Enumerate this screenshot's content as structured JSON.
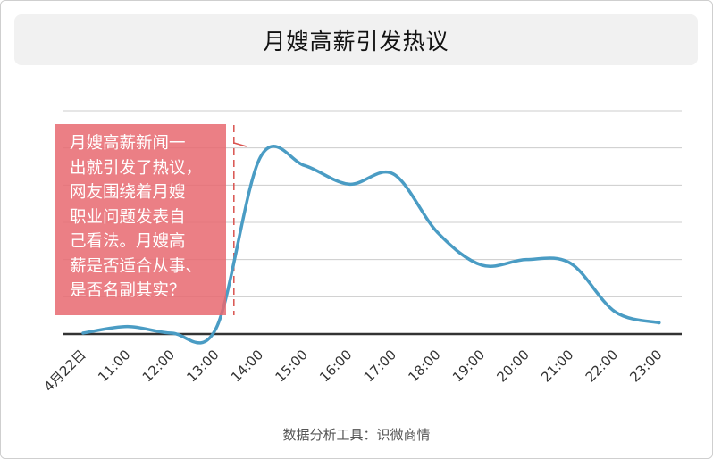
{
  "title": "月嫂高薪引发热议",
  "annotation": {
    "lines": [
      "月嫂高薪新闻一",
      "出就引发了热议，",
      "网友围绕着月嫂",
      "职业问题发表自",
      "己看法。月嫂高",
      "薪是否适合从事、",
      "是否名副其实？"
    ]
  },
  "footer": "数据分析工具：识微商情",
  "colors": {
    "line": "#4a9cc4",
    "annotation_bg": "#e76970",
    "marker": "#d9534f",
    "grid": "#cccccc",
    "axis": "#333333"
  },
  "chart_data": {
    "type": "line",
    "title": "月嫂高薪引发热议",
    "xlabel": "",
    "ylabel": "",
    "categories": [
      "4月22日",
      "11:00",
      "12:00",
      "13:00",
      "14:00",
      "15:00",
      "16:00",
      "17:00",
      "18:00",
      "19:00",
      "20:00",
      "21:00",
      "22:00",
      "23:00"
    ],
    "series": [
      {
        "values": [
          1,
          8,
          1,
          6,
          190,
          181,
          161,
          172,
          109,
          74,
          80,
          76,
          24,
          12
        ]
      }
    ],
    "ylim": [
      0,
      240
    ],
    "grid": "horizontal",
    "y_ticks_shown": false,
    "marker_line_at": "13:00"
  }
}
